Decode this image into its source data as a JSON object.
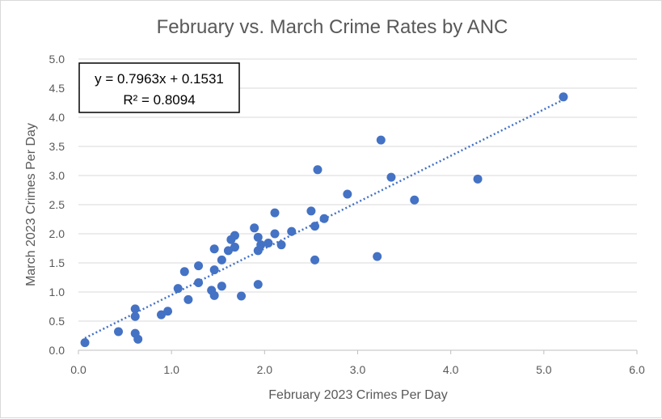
{
  "chart_data": {
    "type": "scatter",
    "title": "February vs. March Crime Rates by ANC",
    "xlabel": "February 2023 Crimes Per Day",
    "ylabel": "March 2023 Crimes Per Day",
    "xlim": [
      0,
      6
    ],
    "ylim": [
      0,
      5
    ],
    "x_ticks": [
      "0.0",
      "1.0",
      "2.0",
      "3.0",
      "4.0",
      "5.0",
      "6.0"
    ],
    "y_ticks": [
      "0.0",
      "0.5",
      "1.0",
      "1.5",
      "2.0",
      "2.5",
      "3.0",
      "3.5",
      "4.0",
      "4.5",
      "5.0"
    ],
    "grid": "horizontal",
    "marker_color": "#4472c4",
    "trendline": {
      "type": "linear",
      "slope": 0.7963,
      "intercept": 0.1531,
      "equation": "y = 0.7963x + 0.1531",
      "r_squared": "R² = 0.8094",
      "style": "dotted"
    },
    "points": [
      {
        "x": 0.07,
        "y": 0.13
      },
      {
        "x": 0.43,
        "y": 0.32
      },
      {
        "x": 0.61,
        "y": 0.29
      },
      {
        "x": 0.64,
        "y": 0.19
      },
      {
        "x": 0.61,
        "y": 0.58
      },
      {
        "x": 0.61,
        "y": 0.71
      },
      {
        "x": 0.89,
        "y": 0.61
      },
      {
        "x": 0.96,
        "y": 0.67
      },
      {
        "x": 1.07,
        "y": 1.06
      },
      {
        "x": 1.14,
        "y": 1.35
      },
      {
        "x": 1.18,
        "y": 0.87
      },
      {
        "x": 1.29,
        "y": 1.45
      },
      {
        "x": 1.29,
        "y": 1.16
      },
      {
        "x": 1.43,
        "y": 1.03
      },
      {
        "x": 1.46,
        "y": 0.94
      },
      {
        "x": 1.46,
        "y": 1.38
      },
      {
        "x": 1.46,
        "y": 1.74
      },
      {
        "x": 1.54,
        "y": 1.55
      },
      {
        "x": 1.54,
        "y": 1.1
      },
      {
        "x": 1.61,
        "y": 1.71
      },
      {
        "x": 1.64,
        "y": 1.9
      },
      {
        "x": 1.68,
        "y": 1.97
      },
      {
        "x": 1.68,
        "y": 1.77
      },
      {
        "x": 1.75,
        "y": 0.93
      },
      {
        "x": 1.89,
        "y": 2.1
      },
      {
        "x": 1.93,
        "y": 1.94
      },
      {
        "x": 1.93,
        "y": 1.71
      },
      {
        "x": 1.93,
        "y": 1.13
      },
      {
        "x": 1.96,
        "y": 1.81
      },
      {
        "x": 2.04,
        "y": 1.84
      },
      {
        "x": 2.11,
        "y": 2.0
      },
      {
        "x": 2.11,
        "y": 2.36
      },
      {
        "x": 2.18,
        "y": 1.81
      },
      {
        "x": 2.29,
        "y": 2.04
      },
      {
        "x": 2.5,
        "y": 2.39
      },
      {
        "x": 2.54,
        "y": 2.13
      },
      {
        "x": 2.54,
        "y": 1.55
      },
      {
        "x": 2.57,
        "y": 3.1
      },
      {
        "x": 2.64,
        "y": 2.26
      },
      {
        "x": 2.89,
        "y": 2.68
      },
      {
        "x": 3.21,
        "y": 1.61
      },
      {
        "x": 3.25,
        "y": 3.61
      },
      {
        "x": 3.36,
        "y": 2.97
      },
      {
        "x": 3.61,
        "y": 2.58
      },
      {
        "x": 4.29,
        "y": 2.94
      },
      {
        "x": 5.21,
        "y": 4.35
      }
    ]
  }
}
